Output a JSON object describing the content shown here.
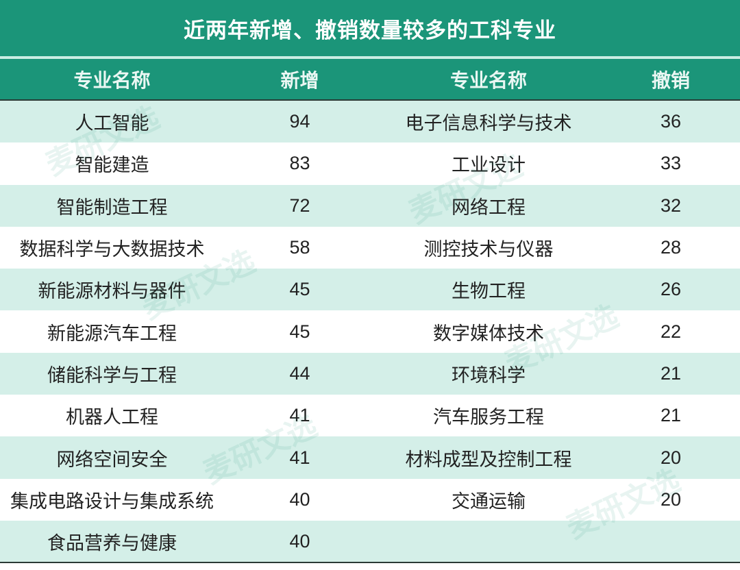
{
  "title": "近两年新增、撤销数量较多的工科专业",
  "headers": [
    "专业名称",
    "新增",
    "专业名称",
    "撤销"
  ],
  "watermark": "麦研文选",
  "colors": {
    "header_bg": "#1b9579",
    "row_alt_bg": "#d4efe8",
    "header_text": "#ffffff"
  },
  "chart_data": {
    "type": "table",
    "title": "近两年新增、撤销数量较多的工科专业",
    "columns": [
      "专业名称",
      "新增",
      "专业名称",
      "撤销"
    ],
    "rows": [
      [
        "人工智能",
        "94",
        "电子信息科学与技术",
        "36"
      ],
      [
        "智能建造",
        "83",
        "工业设计",
        "33"
      ],
      [
        "智能制造工程",
        "72",
        "网络工程",
        "32"
      ],
      [
        "数据科学与大数据技术",
        "58",
        "测控技术与仪器",
        "28"
      ],
      [
        "新能源材料与器件",
        "45",
        "生物工程",
        "26"
      ],
      [
        "新能源汽车工程",
        "45",
        "数字媒体技术",
        "22"
      ],
      [
        "储能科学与工程",
        "44",
        "环境科学",
        "21"
      ],
      [
        "机器人工程",
        "41",
        "汽车服务工程",
        "21"
      ],
      [
        "网络空间安全",
        "41",
        "材料成型及控制工程",
        "20"
      ],
      [
        "集成电路设计与集成系统",
        "40",
        "交通运输",
        "20"
      ],
      [
        "食品营养与健康",
        "40",
        "",
        ""
      ]
    ]
  }
}
